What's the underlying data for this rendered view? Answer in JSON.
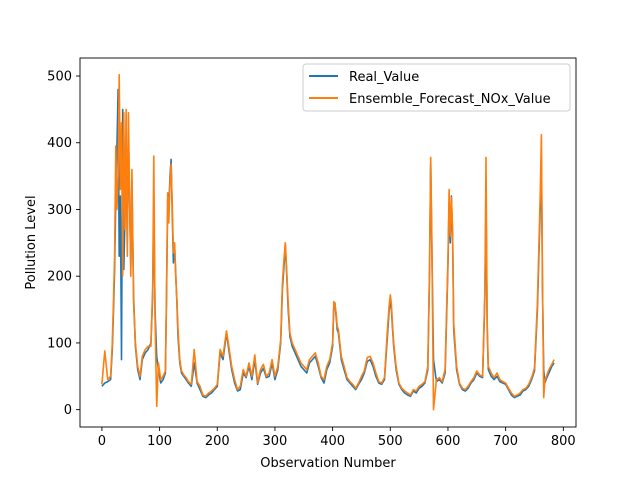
{
  "chart_data": {
    "type": "line",
    "xlabel": "Observation Number",
    "ylabel": "Pollution Level",
    "xlim": [
      -38,
      822
    ],
    "ylim": [
      -26,
      527
    ],
    "xticks": [
      0,
      100,
      200,
      300,
      400,
      500,
      600,
      700,
      800
    ],
    "yticks": [
      0,
      100,
      200,
      300,
      400,
      500
    ],
    "grid": false,
    "legend_position": "top-right",
    "series": [
      {
        "name": "Real_Value",
        "color": "#1f77b4",
        "x": [
          0,
          5,
          10,
          15,
          18,
          20,
          22,
          24,
          26,
          28,
          30,
          32,
          34,
          36,
          38,
          40,
          42,
          44,
          46,
          48,
          50,
          52,
          55,
          58,
          62,
          66,
          70,
          75,
          80,
          85,
          88,
          90,
          92,
          95,
          98,
          102,
          106,
          110,
          112,
          114,
          116,
          118,
          120,
          122,
          124,
          126,
          128,
          130,
          132,
          135,
          138,
          142,
          146,
          150,
          155,
          160,
          165,
          170,
          175,
          180,
          185,
          190,
          195,
          200,
          205,
          210,
          213,
          216,
          220,
          225,
          230,
          235,
          240,
          245,
          250,
          255,
          260,
          265,
          270,
          275,
          280,
          285,
          290,
          295,
          300,
          305,
          310,
          313,
          316,
          318,
          320,
          323,
          326,
          330,
          335,
          340,
          345,
          350,
          355,
          360,
          365,
          370,
          375,
          380,
          385,
          390,
          395,
          400,
          402,
          404,
          406,
          408,
          410,
          415,
          420,
          425,
          430,
          435,
          440,
          445,
          450,
          455,
          460,
          465,
          470,
          475,
          480,
          485,
          490,
          495,
          498,
          500,
          502,
          504,
          506,
          510,
          515,
          520,
          525,
          530,
          535,
          540,
          545,
          550,
          555,
          560,
          565,
          568,
          570,
          572,
          575,
          580,
          585,
          590,
          595,
          598,
          600,
          602,
          604,
          606,
          608,
          610,
          615,
          620,
          625,
          630,
          635,
          640,
          645,
          650,
          655,
          660,
          664,
          666,
          668,
          670,
          675,
          680,
          685,
          690,
          695,
          700,
          705,
          710,
          715,
          720,
          725,
          730,
          735,
          740,
          745,
          750,
          755,
          760,
          762,
          764,
          766,
          768,
          770,
          775,
          780,
          784
        ],
        "values": [
          35,
          40,
          42,
          45,
          90,
          150,
          210,
          320,
          390,
          480,
          230,
          320,
          75,
          450,
          210,
          290,
          380,
          250,
          420,
          305,
          215,
          345,
          170,
          95,
          60,
          45,
          75,
          85,
          90,
          100,
          170,
          310,
          150,
          80,
          60,
          40,
          45,
          55,
          165,
          315,
          300,
          350,
          375,
          290,
          220,
          245,
          205,
          160,
          110,
          70,
          55,
          50,
          45,
          40,
          35,
          70,
          40,
          30,
          20,
          18,
          22,
          25,
          30,
          35,
          85,
          75,
          95,
          115,
          90,
          60,
          40,
          28,
          30,
          55,
          48,
          65,
          45,
          75,
          38,
          55,
          62,
          48,
          50,
          70,
          45,
          60,
          100,
          180,
          220,
          248,
          210,
          150,
          110,
          95,
          85,
          75,
          65,
          60,
          55,
          70,
          75,
          80,
          65,
          48,
          40,
          60,
          70,
          95,
          155,
          160,
          140,
          120,
          115,
          75,
          60,
          45,
          40,
          35,
          30,
          38,
          45,
          55,
          72,
          75,
          65,
          50,
          40,
          38,
          45,
          110,
          148,
          165,
          150,
          120,
          95,
          60,
          38,
          30,
          25,
          22,
          20,
          28,
          25,
          32,
          35,
          40,
          60,
          200,
          370,
          250,
          75,
          42,
          45,
          40,
          55,
          150,
          220,
          310,
          250,
          320,
          260,
          120,
          60,
          38,
          30,
          28,
          32,
          40,
          45,
          55,
          50,
          48,
          170,
          310,
          120,
          60,
          50,
          45,
          50,
          42,
          40,
          38,
          30,
          22,
          18,
          20,
          22,
          28,
          30,
          35,
          45,
          58,
          150,
          300,
          375,
          180,
          60,
          40,
          45,
          55,
          65,
          70
        ]
      },
      {
        "name": "Ensemble_Forecast_NOx_Value",
        "color": "#ff7f0e",
        "x": [
          0,
          5,
          10,
          15,
          18,
          20,
          22,
          24,
          26,
          28,
          30,
          32,
          34,
          36,
          38,
          40,
          42,
          44,
          46,
          48,
          50,
          52,
          55,
          58,
          62,
          66,
          70,
          75,
          80,
          85,
          88,
          90,
          92,
          95,
          98,
          102,
          106,
          110,
          112,
          114,
          116,
          118,
          120,
          122,
          124,
          126,
          128,
          130,
          132,
          135,
          138,
          142,
          146,
          150,
          155,
          160,
          165,
          170,
          175,
          180,
          185,
          190,
          195,
          200,
          205,
          210,
          213,
          216,
          220,
          225,
          230,
          235,
          240,
          245,
          250,
          255,
          260,
          265,
          270,
          275,
          280,
          285,
          290,
          295,
          300,
          305,
          310,
          313,
          316,
          318,
          320,
          323,
          326,
          330,
          335,
          340,
          345,
          350,
          355,
          360,
          365,
          370,
          375,
          380,
          385,
          390,
          395,
          400,
          402,
          404,
          406,
          408,
          410,
          415,
          420,
          425,
          430,
          435,
          440,
          445,
          450,
          455,
          460,
          465,
          470,
          475,
          480,
          485,
          490,
          495,
          498,
          500,
          502,
          504,
          506,
          510,
          515,
          520,
          525,
          530,
          535,
          540,
          545,
          550,
          555,
          560,
          565,
          568,
          570,
          572,
          575,
          580,
          585,
          590,
          595,
          598,
          600,
          602,
          604,
          606,
          608,
          610,
          615,
          620,
          625,
          630,
          635,
          640,
          645,
          650,
          655,
          660,
          664,
          666,
          668,
          670,
          675,
          680,
          685,
          690,
          695,
          700,
          705,
          710,
          715,
          720,
          725,
          730,
          735,
          740,
          745,
          750,
          755,
          760,
          762,
          764,
          766,
          768,
          770,
          775,
          780,
          784
        ],
        "values": [
          38,
          88,
          45,
          50,
          100,
          165,
          230,
          395,
          300,
          350,
          502,
          330,
          430,
          200,
          445,
          270,
          450,
          230,
          445,
          320,
          200,
          360,
          160,
          100,
          65,
          50,
          80,
          90,
          95,
          95,
          185,
          380,
          140,
          5,
          70,
          45,
          50,
          58,
          175,
          325,
          280,
          340,
          368,
          305,
          235,
          250,
          200,
          165,
          120,
          75,
          58,
          52,
          48,
          42,
          38,
          90,
          42,
          35,
          22,
          20,
          25,
          28,
          32,
          38,
          90,
          80,
          100,
          118,
          95,
          65,
          45,
          30,
          35,
          60,
          50,
          70,
          50,
          82,
          40,
          60,
          68,
          50,
          55,
          75,
          50,
          65,
          105,
          190,
          230,
          250,
          215,
          160,
          115,
          100,
          90,
          80,
          70,
          65,
          60,
          75,
          80,
          85,
          70,
          50,
          45,
          65,
          75,
          100,
          162,
          158,
          145,
          125,
          120,
          80,
          65,
          48,
          42,
          38,
          32,
          40,
          50,
          58,
          78,
          80,
          70,
          55,
          42,
          40,
          48,
          120,
          155,
          172,
          158,
          125,
          100,
          65,
          40,
          32,
          28,
          25,
          22,
          30,
          28,
          35,
          38,
          42,
          65,
          210,
          378,
          260,
          0,
          45,
          48,
          42,
          60,
          160,
          228,
          330,
          260,
          318,
          270,
          130,
          65,
          40,
          32,
          30,
          35,
          42,
          48,
          58,
          52,
          50,
          180,
          378,
          130,
          65,
          55,
          48,
          55,
          45,
          42,
          40,
          32,
          25,
          20,
          22,
          25,
          30,
          32,
          38,
          48,
          62,
          160,
          320,
          412,
          190,
          18,
          45,
          48,
          60,
          68,
          75
        ]
      }
    ]
  }
}
